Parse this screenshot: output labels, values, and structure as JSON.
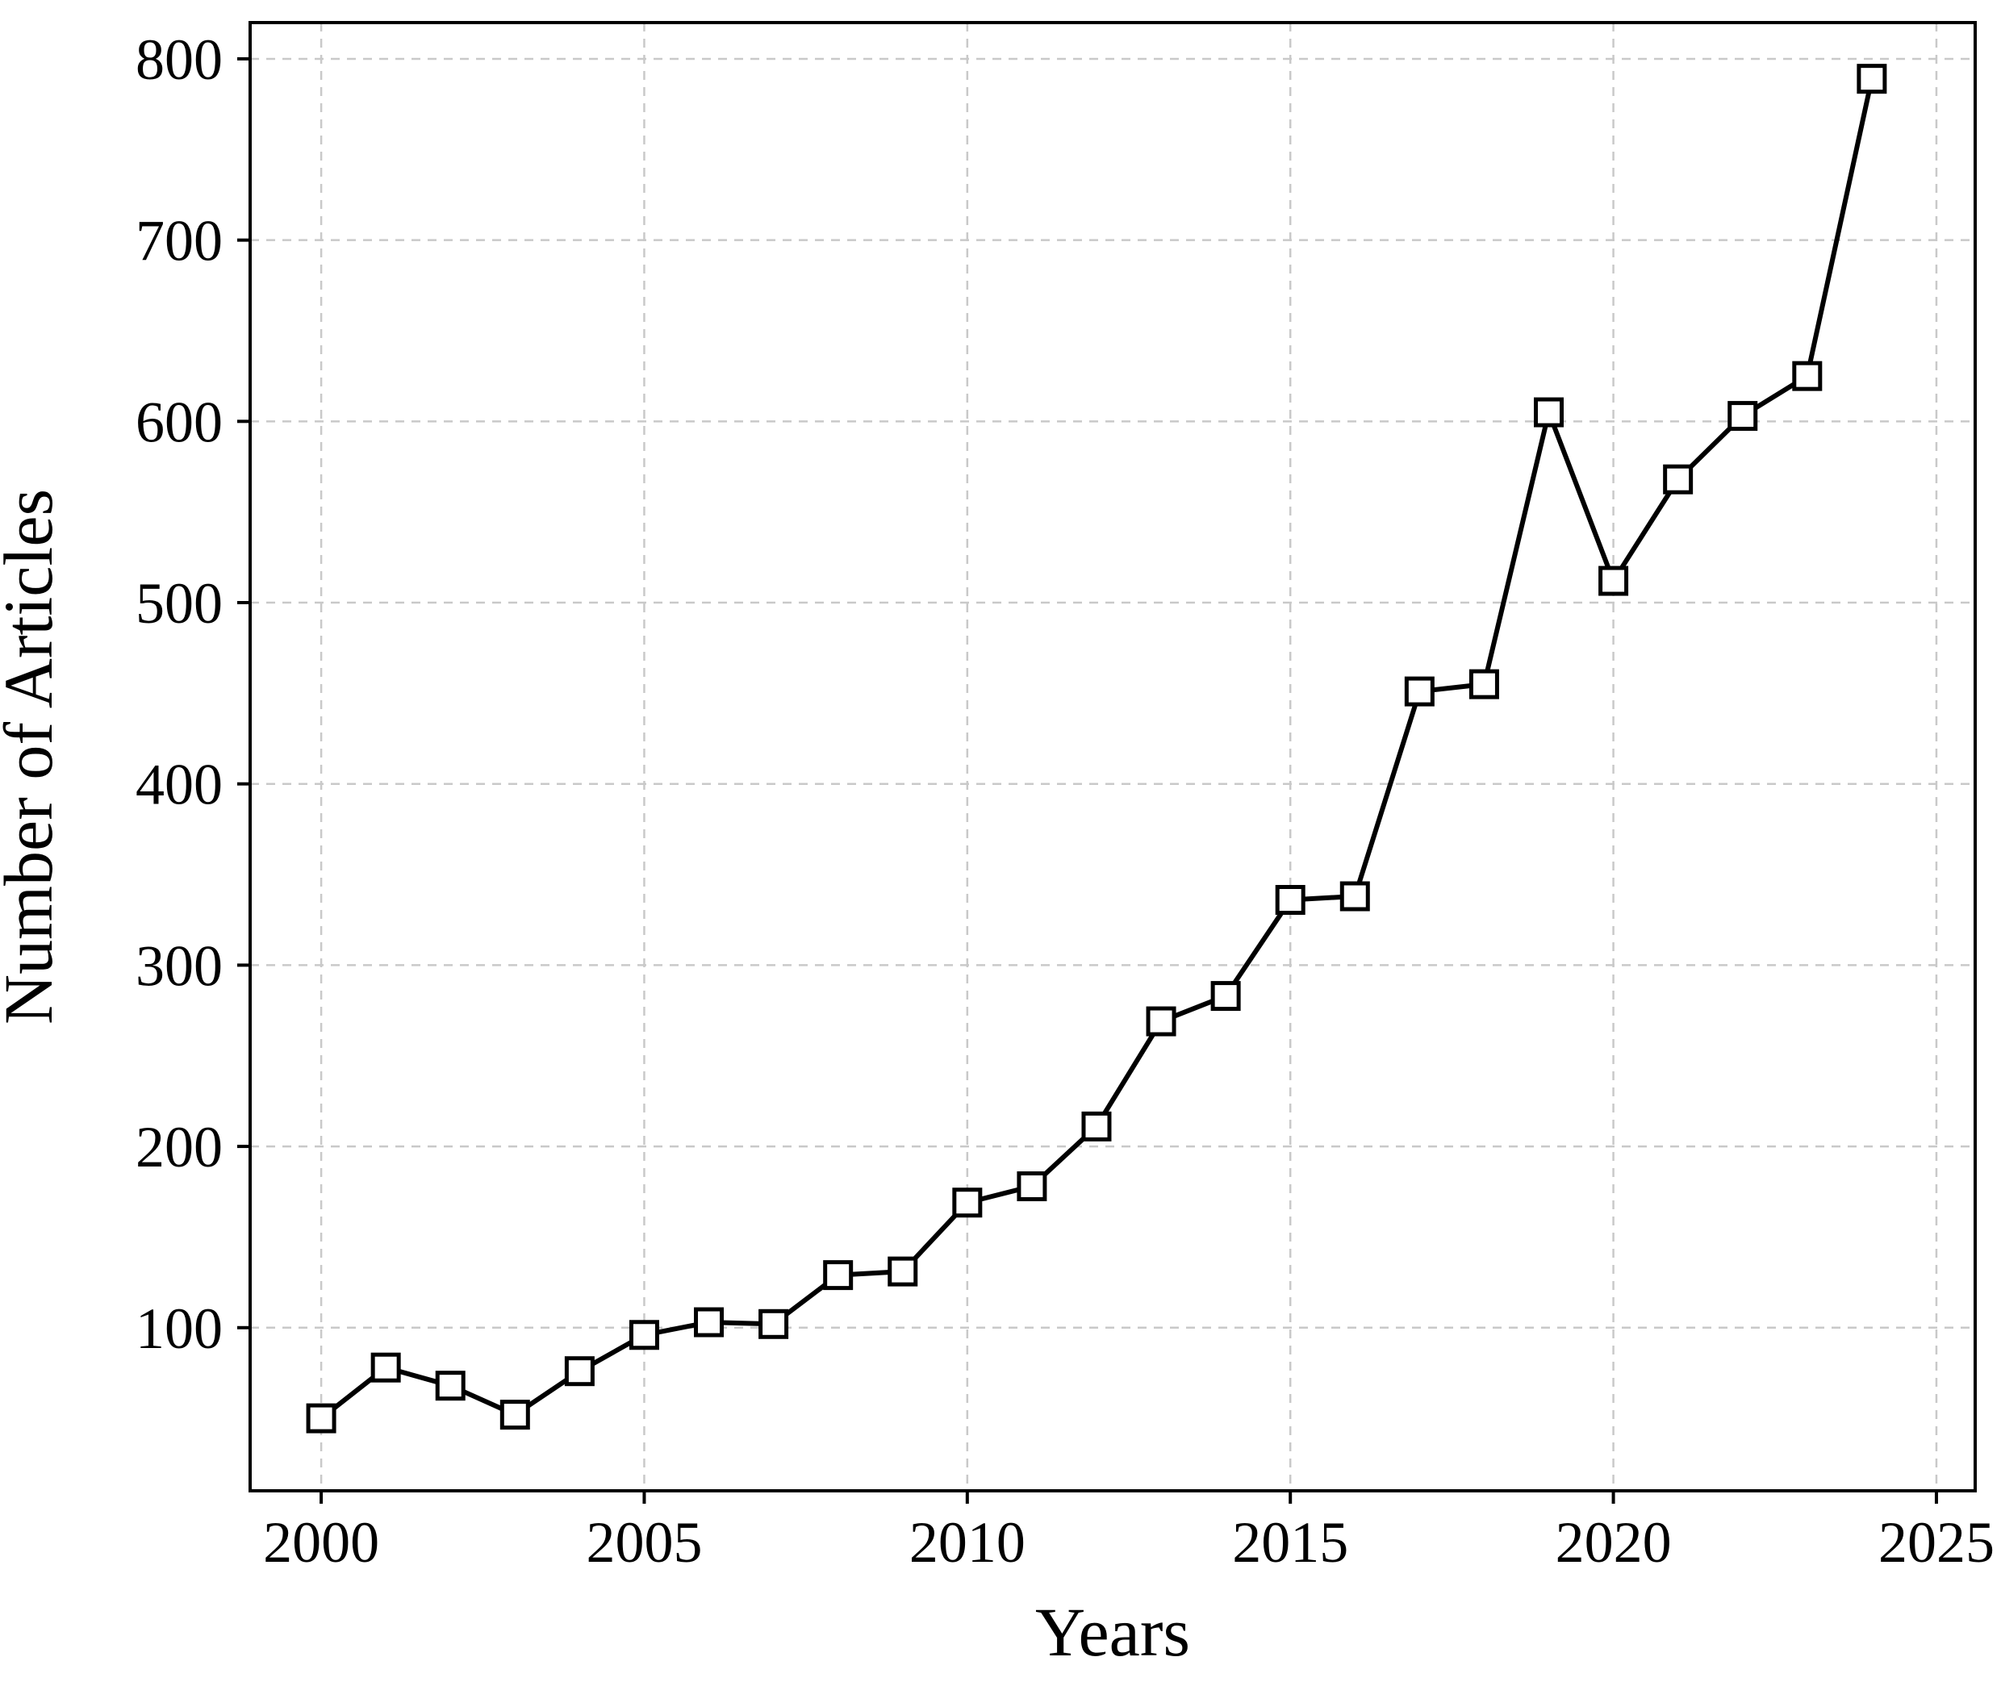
{
  "chart_data": {
    "type": "line",
    "title": "",
    "xlabel": "Years",
    "ylabel": "Number of Articles",
    "x": [
      2000,
      2001,
      2002,
      2003,
      2004,
      2005,
      2006,
      2007,
      2008,
      2009,
      2010,
      2011,
      2012,
      2013,
      2014,
      2015,
      2016,
      2017,
      2018,
      2019,
      2020,
      2021,
      2022,
      2023,
      2024
    ],
    "values": [
      50,
      78,
      68,
      52,
      76,
      96,
      103,
      102,
      129,
      131,
      169,
      178,
      211,
      269,
      283,
      336,
      338,
      451,
      455,
      605,
      512,
      568,
      603,
      625,
      789
    ],
    "x_ticks": [
      2000,
      2005,
      2010,
      2015,
      2020,
      2025
    ],
    "y_ticks": [
      100,
      200,
      300,
      400,
      500,
      600,
      700,
      800
    ],
    "xlim": [
      1998.9,
      2025.6
    ],
    "ylim": [
      10,
      820
    ],
    "grid": "dashed",
    "legend_position": "none",
    "marker": "square",
    "line_color": "#000000",
    "marker_fill": "#ffffff",
    "marker_edge_color": "#000000",
    "grid_color": "#c9c9c9",
    "spine_color": "#000000",
    "background_color": "#ffffff"
  }
}
